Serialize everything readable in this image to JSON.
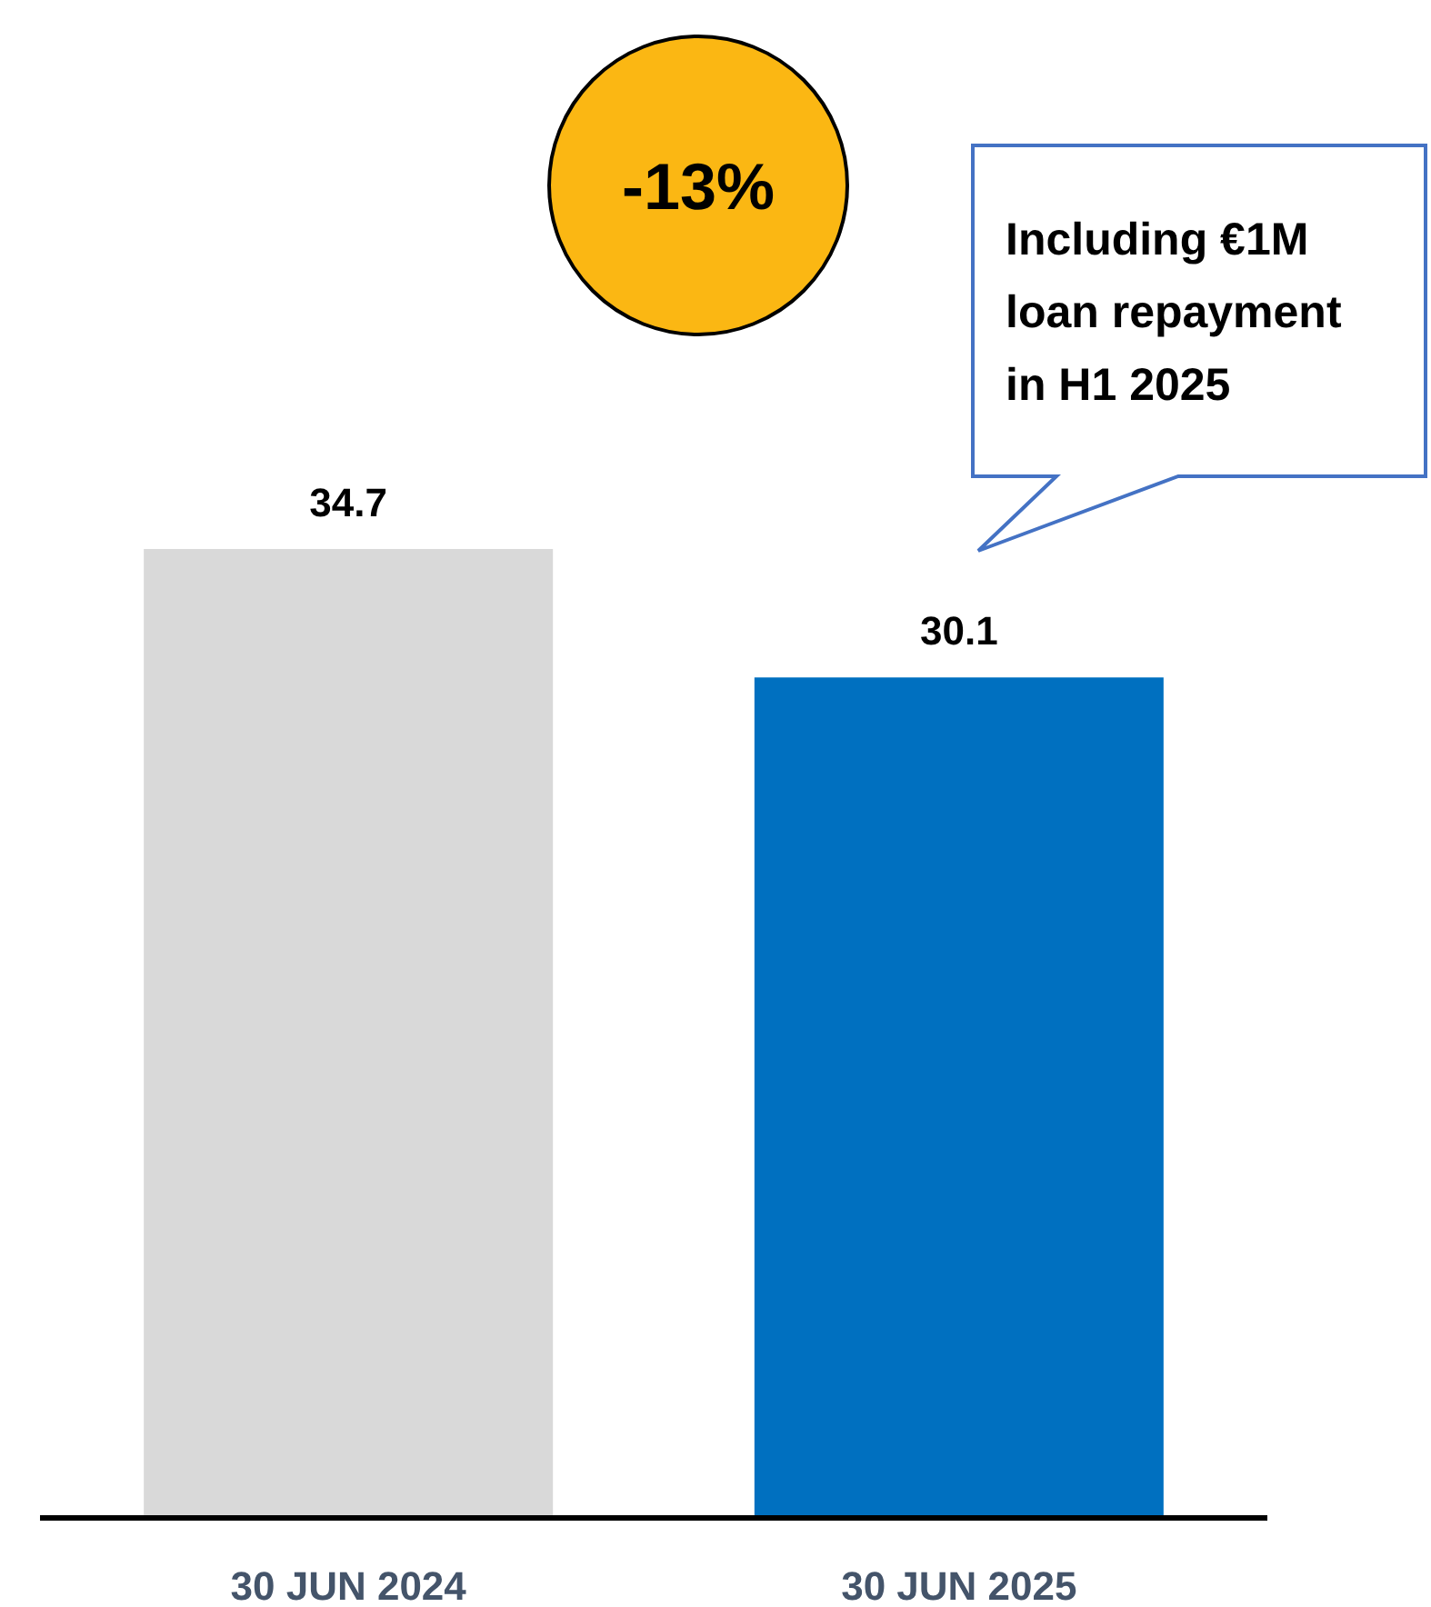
{
  "chart_data": {
    "type": "bar",
    "categories": [
      "30 JUN 2024",
      "30 JUN 2025"
    ],
    "colors": [
      "#d9d9d9",
      "#0070c0"
    ],
    "values": [
      34.7,
      30.1
    ],
    "data_labels": true,
    "annotations": [
      "-13%",
      "Including €1M loan repayment in H1 2025"
    ]
  }
}
